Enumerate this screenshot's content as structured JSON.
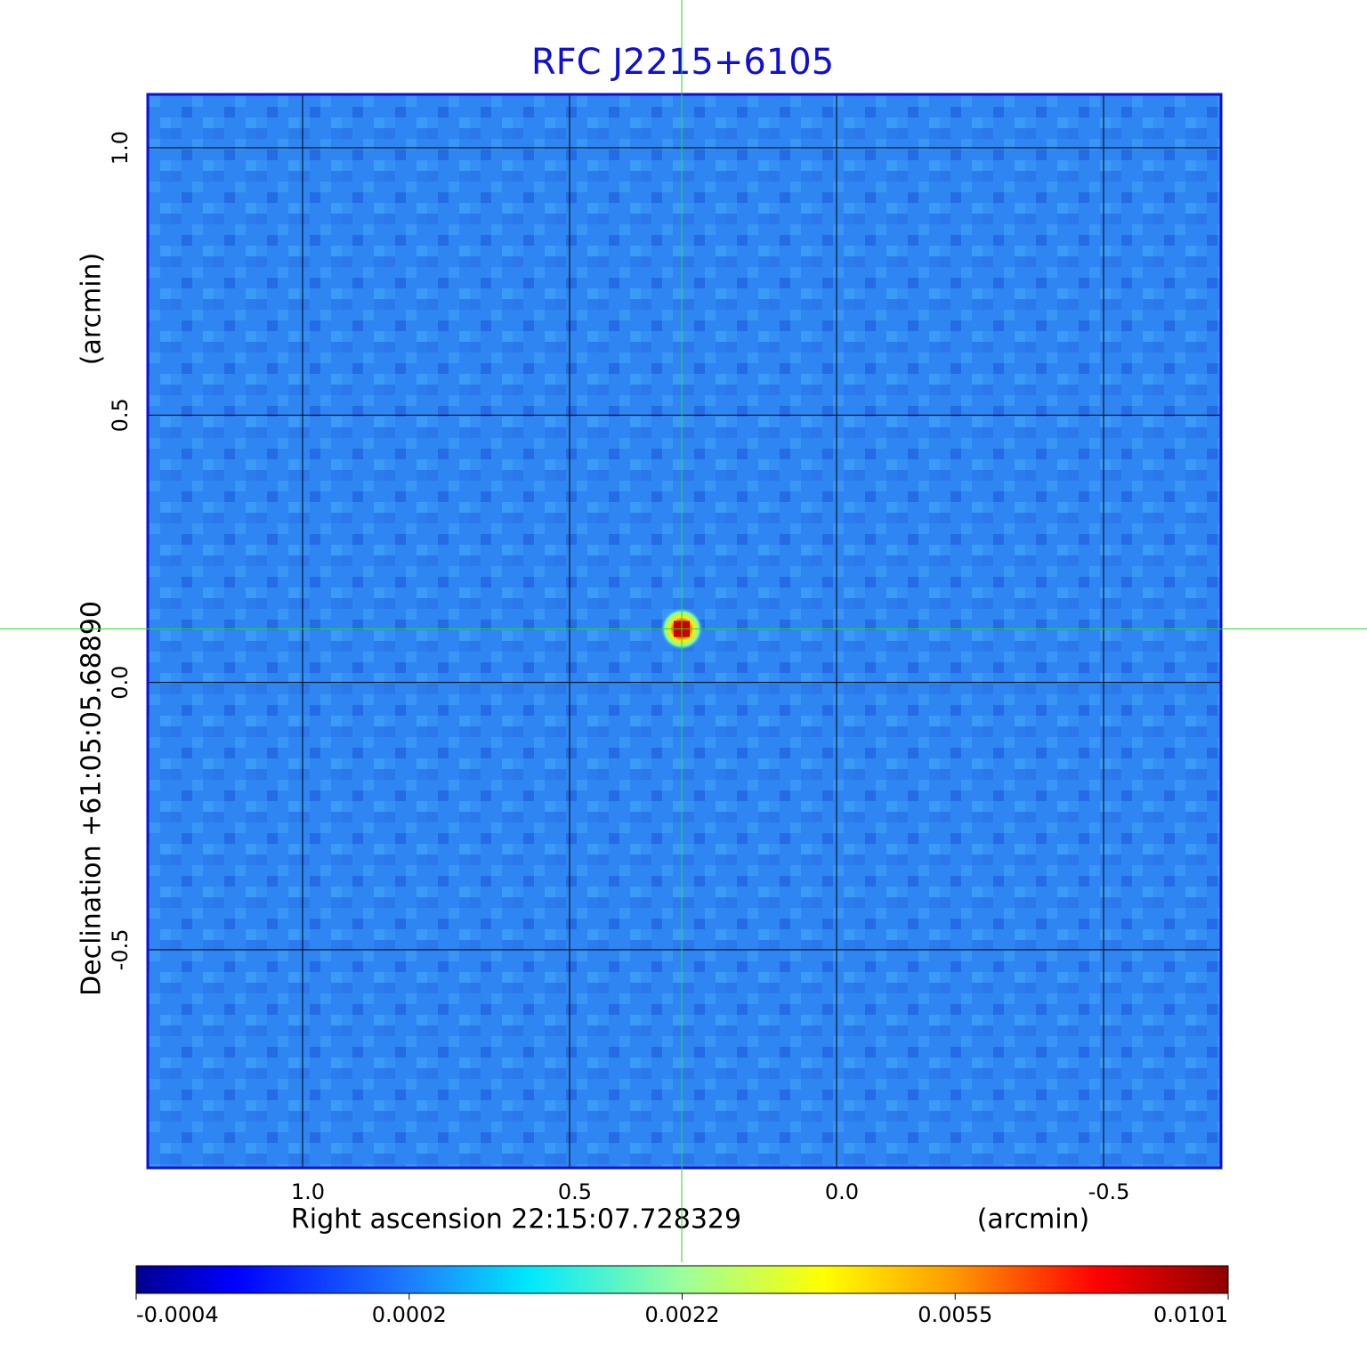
{
  "chart_data": {
    "type": "image",
    "title": "RFC J2215+6105",
    "x_label": "Right ascension  22:15:07.728329",
    "x_unit": "(arcmin)",
    "y_label": "Declination  +61:05:05.68890",
    "y_unit": "(arcmin)",
    "xlim": [
      1.29,
      -0.72
    ],
    "ylim": [
      -0.908,
      1.1
    ],
    "xticks": [
      {
        "value": 1,
        "label": "1.0"
      },
      0.5,
      {
        "value": 0,
        "label": "0.0"
      },
      -0.5
    ],
    "yticks": [
      {
        "value": -0.5,
        "label": "-0.5"
      },
      {
        "value": 0,
        "label": "0.0"
      },
      0.5,
      {
        "value": 1,
        "label": "1.0"
      }
    ],
    "grid": true,
    "crosshair": {
      "x": 0.29,
      "y": 0.1
    },
    "colorbar": {
      "colormap": "jet",
      "ticks": [
        -0.0004,
        0.0002,
        0.0022,
        0.0055,
        0.0101
      ]
    }
  }
}
